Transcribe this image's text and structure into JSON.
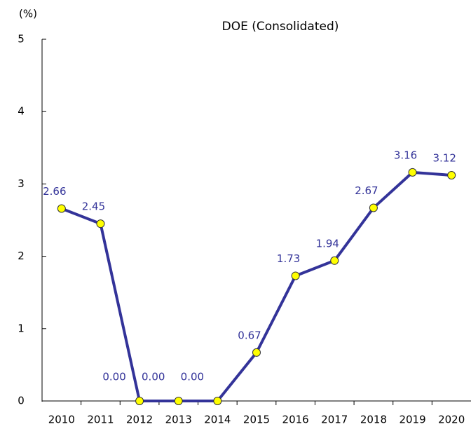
{
  "chart_data": {
    "type": "line",
    "title": "DOE (Consolidated)",
    "y_label": "(%)",
    "categories": [
      "2010",
      "2011",
      "2012",
      "2013",
      "2014",
      "2015",
      "2016",
      "2017",
      "2018",
      "2019",
      "2020"
    ],
    "series": [
      {
        "name": "DOE",
        "color": "#333399",
        "values": [
          2.66,
          2.45,
          0,
          0,
          0,
          0.67,
          1.73,
          1.94,
          2.67,
          3.16,
          3.12
        ],
        "value_labels": [
          "2.66",
          "2.45",
          "0.00",
          "0.00",
          "0.00",
          "0.67",
          "1.73",
          "1.94",
          "2.67",
          "3.16",
          "3.12"
        ]
      }
    ],
    "marker_color": "#ffff00",
    "ylim": [
      0,
      5
    ],
    "yticks": [
      0,
      1,
      2,
      3,
      4,
      5
    ]
  }
}
